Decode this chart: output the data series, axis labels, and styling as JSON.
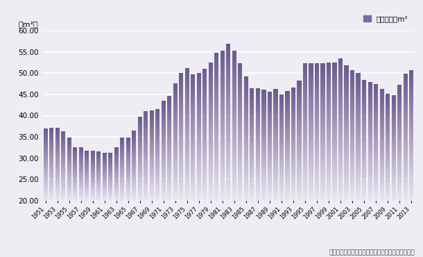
{
  "years": [
    1951,
    1952,
    1953,
    1954,
    1955,
    1956,
    1957,
    1958,
    1959,
    1960,
    1961,
    1962,
    1963,
    1964,
    1965,
    1966,
    1967,
    1968,
    1969,
    1970,
    1971,
    1972,
    1973,
    1974,
    1975,
    1976,
    1977,
    1978,
    1979,
    1980,
    1981,
    1982,
    1983,
    1984,
    1985,
    1986,
    1987,
    1988,
    1989,
    1990,
    1991,
    1992,
    1993,
    1994,
    1995,
    1996,
    1997,
    1998,
    1999,
    2000,
    2001,
    2002,
    2003,
    2004,
    2005,
    2006,
    2007,
    2008,
    2009,
    2010,
    2011,
    2012,
    2013
  ],
  "values": [
    37.0,
    37.2,
    37.1,
    36.3,
    34.8,
    32.6,
    32.6,
    31.8,
    31.8,
    31.6,
    31.3,
    31.2,
    32.5,
    34.9,
    34.9,
    36.5,
    39.8,
    41.1,
    41.2,
    41.6,
    43.6,
    44.7,
    47.6,
    50.0,
    51.3,
    49.8,
    50.0,
    51.1,
    52.6,
    54.9,
    55.3,
    57.0,
    55.3,
    52.3,
    49.2,
    46.4,
    46.5,
    46.2,
    45.6,
    46.3,
    45.0,
    45.8,
    46.6,
    48.3,
    52.3,
    52.4,
    52.4,
    52.3,
    52.6,
    52.6,
    53.5,
    51.8,
    50.7,
    50.0,
    48.5,
    47.9,
    47.5,
    46.3,
    45.1,
    44.9,
    47.3,
    49.9,
    50.7
  ],
  "bar_color_top": "#6b5b8e",
  "bar_color_bottom": "#e8e4f0",
  "title_y_label": "（m²）",
  "legend_label": "一戸当たりm²",
  "ylim_min": 20.0,
  "ylim_max": 60.0,
  "yticks": [
    20.0,
    25.0,
    30.0,
    35.0,
    40.0,
    45.0,
    50.0,
    55.0,
    60.0
  ],
  "x_tick_years": [
    1951,
    1953,
    1955,
    1957,
    1959,
    1961,
    1963,
    1965,
    1967,
    1969,
    1971,
    1973,
    1975,
    1977,
    1979,
    1981,
    1983,
    1985,
    1987,
    1989,
    1991,
    1993,
    1995,
    1997,
    1999,
    2001,
    2003,
    2005,
    2007,
    2009,
    2011,
    2013
  ],
  "caption": "（国土交通省「建築着工統計調査報告」より作成）",
  "background_color": "#eeedf3",
  "plot_bg_color": "#eeedf3",
  "grid_color": "#ffffff",
  "legend_marker_color": "#7b6ba0"
}
